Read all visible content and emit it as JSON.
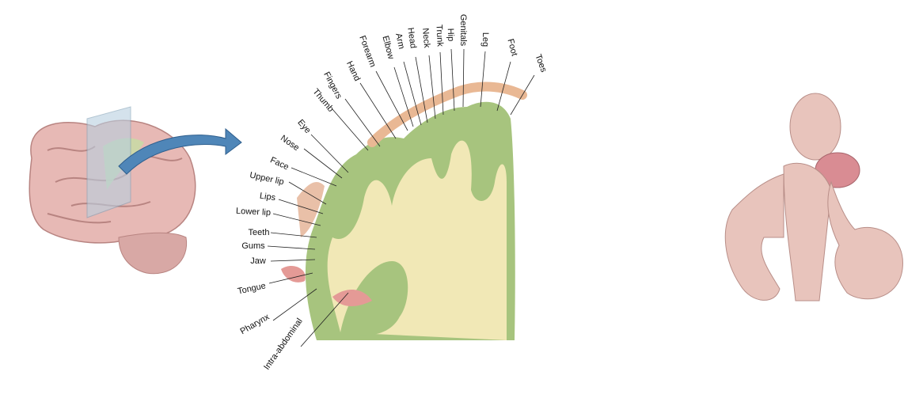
{
  "labels": [
    "Intra-abdominal",
    "Pharynx",
    "Tongue",
    "Jaw",
    "Gums",
    "Teeth",
    "Lower lip",
    "Lips",
    "Upper lip",
    "Face",
    "Nose",
    "Eye",
    "Thumb",
    "Fingers",
    "Hand",
    "Forearm",
    "Elbow",
    "Arm",
    "Head",
    "Neck",
    "Trunk",
    "Hip",
    "Genitals",
    "Leg",
    "Foot",
    "Toes"
  ]
}
